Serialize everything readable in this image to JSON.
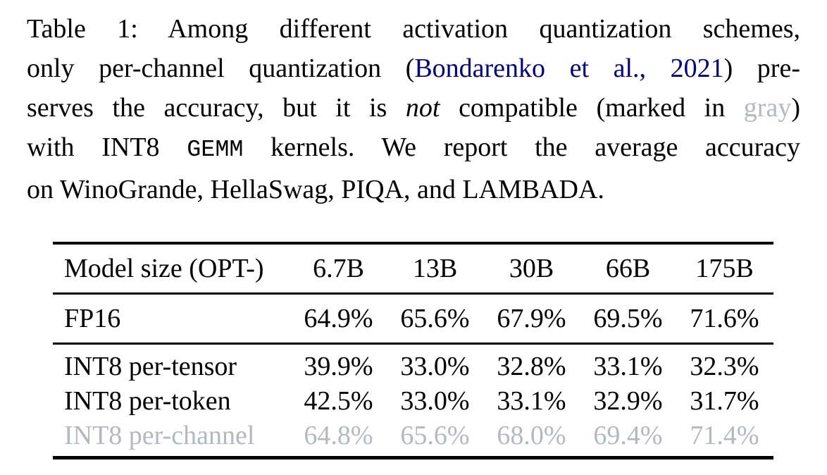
{
  "colors": {
    "text": "#000000",
    "citation_blue": "#00008b",
    "muted_gray": "#b4b8bf",
    "rule_black": "#000000",
    "background": "#ffffff"
  },
  "caption": {
    "lines": [
      {
        "segments": [
          {
            "text": "Table 1: Among different activation quantization schemes,"
          }
        ]
      },
      {
        "segments": [
          {
            "text": "only per-channel quantization ("
          },
          {
            "text": "Bondarenko et al., 2021"
          },
          {
            "text": ") pre-"
          }
        ]
      },
      {
        "segments": [
          {
            "text": "serves the accuracy, but it is "
          },
          {
            "text": "not"
          },
          {
            "text": " compatible (marked in "
          },
          {
            "text": "gray"
          },
          {
            "text": ")"
          }
        ]
      },
      {
        "segments": [
          {
            "text": "with INT8 "
          },
          {
            "text": "GEMM"
          },
          {
            "text": " kernels. We report the average accuracy"
          }
        ]
      },
      {
        "segments": [
          {
            "text": "on WinoGrande, HellaSwag, PIQA, and LAMBADA."
          }
        ]
      }
    ]
  },
  "table": {
    "header": {
      "label": "Model size (OPT-)",
      "cols": [
        "6.7B",
        "13B",
        "30B",
        "66B",
        "175B"
      ]
    },
    "rows": [
      {
        "label": "FP16",
        "values": [
          "64.9%",
          "65.6%",
          "67.9%",
          "69.5%",
          "71.6%"
        ],
        "gray": false
      },
      {
        "label": "INT8 per-tensor",
        "values": [
          "39.9%",
          "33.0%",
          "32.8%",
          "33.1%",
          "32.3%"
        ],
        "gray": false
      },
      {
        "label": "INT8 per-token",
        "values": [
          "42.5%",
          "33.0%",
          "33.1%",
          "32.9%",
          "31.7%"
        ],
        "gray": false
      },
      {
        "label": "INT8 per-channel",
        "values": [
          "64.8%",
          "65.6%",
          "68.0%",
          "69.4%",
          "71.4%"
        ],
        "gray": true
      }
    ]
  }
}
